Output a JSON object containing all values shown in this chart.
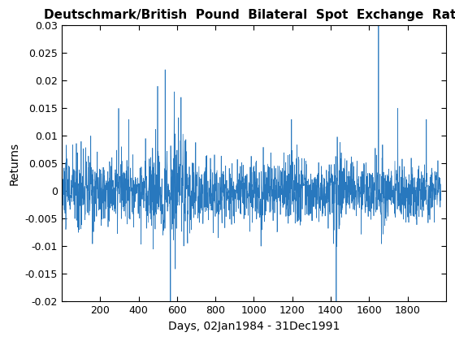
{
  "title": "Deutschmark/British  Pound  Bilateral  Spot  Exchange  Rate",
  "xlabel": "Days, 02Jan1984 - 31Dec1991",
  "ylabel": "Returns",
  "xlim": [
    0,
    2000
  ],
  "ylim": [
    -0.02,
    0.03
  ],
  "yticks": [
    -0.02,
    -0.015,
    -0.01,
    -0.005,
    0,
    0.005,
    0.01,
    0.015,
    0.02,
    0.025,
    0.03
  ],
  "xticks": [
    200,
    400,
    600,
    800,
    1000,
    1200,
    1400,
    1600,
    1800
  ],
  "line_color": "#2878be",
  "line_width": 0.5,
  "n_points": 1974,
  "seed": 10,
  "background_color": "#ffffff",
  "title_fontsize": 11,
  "label_fontsize": 10
}
